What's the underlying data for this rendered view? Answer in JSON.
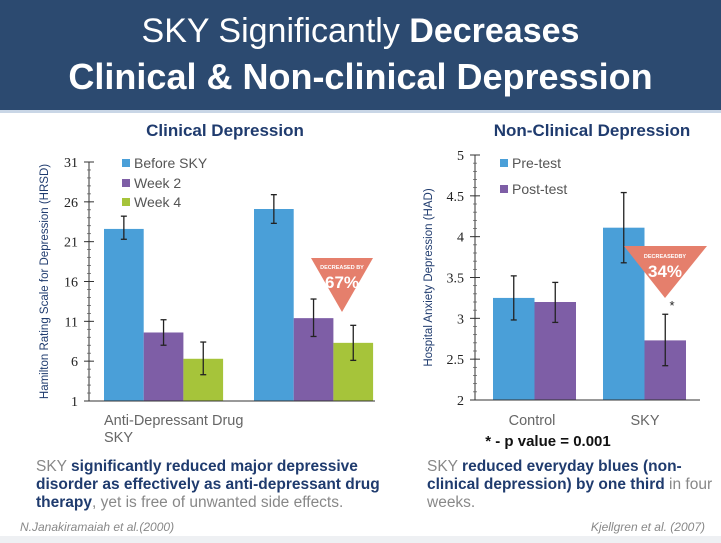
{
  "header": {
    "title_line1_light": "SKY Significantly",
    "title_line1_bold": "Decreases",
    "title_line2": "Clinical & Non-clinical Depression",
    "background_color": "#2c4a70"
  },
  "chart_data": [
    {
      "type": "bar",
      "title": "Clinical Depression",
      "ylabel": "Hamilton Rating Scale for Depression (HRSD)",
      "xlabel": "",
      "categories": [
        "Anti-Depressant Drug",
        "SKY"
      ],
      "series": [
        {
          "name": "Before SKY",
          "color": "#4a9fd8",
          "values": [
            22.6,
            25.1
          ],
          "error_low": [
            21.3,
            23.3
          ],
          "error_high": [
            24.2,
            26.9
          ]
        },
        {
          "name": "Week 2",
          "color": "#7e5ea6",
          "values": [
            9.6,
            11.4
          ],
          "error_low": [
            8.0,
            9.1
          ],
          "error_high": [
            11.2,
            13.8
          ]
        },
        {
          "name": "Week 4",
          "color": "#a6c43a",
          "values": [
            6.3,
            8.3
          ],
          "error_low": [
            4.3,
            6.1
          ],
          "error_high": [
            8.4,
            10.5
          ]
        }
      ],
      "ylim": [
        1,
        31
      ],
      "yticks": [
        1,
        6,
        11,
        16,
        21,
        26,
        31
      ],
      "legend": "top-left",
      "grid": false,
      "annotation": {
        "label": "DECREASED BY",
        "value": "67%",
        "color": "#e57f6c"
      }
    },
    {
      "type": "bar",
      "title": "Non-Clinical Depression",
      "ylabel": "Hospital Anxiety Depression  (HAD)",
      "xlabel": "",
      "categories": [
        "Control",
        "SKY"
      ],
      "series": [
        {
          "name": "Pre-test",
          "color": "#4a9fd8",
          "values": [
            3.25,
            4.11
          ],
          "error_low": [
            2.98,
            3.68
          ],
          "error_high": [
            3.52,
            4.54
          ]
        },
        {
          "name": "Post-test",
          "color": "#7e5ea6",
          "values": [
            3.2,
            2.73
          ],
          "error_low": [
            2.95,
            2.42
          ],
          "error_high": [
            3.44,
            3.05
          ]
        }
      ],
      "ylim": [
        2,
        5
      ],
      "yticks": [
        2,
        2.5,
        3,
        3.5,
        4,
        4.5,
        5
      ],
      "legend": "top-left",
      "grid": false,
      "annotation": {
        "label": "DECREASEDBY",
        "value": "34%",
        "color": "#e57f6c"
      },
      "significance_marker": "*",
      "footnote": "* - p value = 0.001"
    }
  ],
  "captions": {
    "left": {
      "p1": "SKY ",
      "b1": "significantly reduced major depressive disorder as effectively as anti-depressant drug therapy",
      "p2": ", yet is free of unwanted side effects."
    },
    "right": {
      "p1": "SKY ",
      "b1": "reduced everyday blues (non-clinical depression) by one third",
      "p2": " in four weeks."
    }
  },
  "citations": {
    "left": "N.Janakiramaiah et al.(2000)",
    "right": "Kjellgren et al. (2007)"
  }
}
